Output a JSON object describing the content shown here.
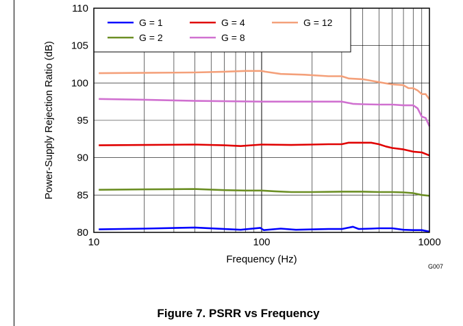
{
  "caption": "Figure 7. PSRR vs Frequency",
  "figure_code": "G007",
  "chart_data": {
    "type": "line",
    "title": "",
    "xlabel": "Frequency (Hz)",
    "ylabel": "Power-Supply Rejection Ratio (dB)",
    "xscale": "log",
    "xlim": [
      10,
      1000
    ],
    "ylim": [
      80,
      110
    ],
    "xticks": [
      10,
      100,
      1000
    ],
    "xtick_labels": [
      "10",
      "100",
      "1000"
    ],
    "yticks": [
      80,
      85,
      90,
      95,
      100,
      105,
      110
    ],
    "ytick_labels": [
      "80",
      "85",
      "90",
      "95",
      "100",
      "105",
      "110"
    ],
    "grid": true,
    "legend_position": "top",
    "series": [
      {
        "name": "G = 1",
        "color": "#0000ff",
        "x": [
          10.7,
          20,
          40,
          60,
          75,
          98,
          103,
          130,
          160,
          250,
          300,
          350,
          380,
          450,
          500,
          600,
          700,
          800,
          900,
          1000
        ],
        "y": [
          80.4,
          80.5,
          80.65,
          80.45,
          80.35,
          80.6,
          80.3,
          80.5,
          80.35,
          80.45,
          80.45,
          80.75,
          80.45,
          80.5,
          80.55,
          80.55,
          80.35,
          80.3,
          80.3,
          80.1
        ]
      },
      {
        "name": "G = 2",
        "color": "#6b8e23",
        "x": [
          10.7,
          20,
          40,
          60,
          80,
          100,
          120,
          150,
          200,
          300,
          400,
          500,
          600,
          700,
          800,
          900,
          1000
        ],
        "y": [
          85.7,
          85.75,
          85.8,
          85.65,
          85.6,
          85.6,
          85.5,
          85.4,
          85.4,
          85.45,
          85.45,
          85.4,
          85.4,
          85.35,
          85.25,
          85.0,
          84.9
        ]
      },
      {
        "name": "G = 4",
        "color": "#e00000",
        "x": [
          10.7,
          20,
          40,
          60,
          75,
          100,
          150,
          200,
          250,
          300,
          330,
          400,
          450,
          500,
          550,
          600,
          700,
          800,
          900,
          1000
        ],
        "y": [
          91.65,
          91.7,
          91.75,
          91.65,
          91.55,
          91.75,
          91.7,
          91.75,
          91.8,
          91.8,
          92.0,
          92.0,
          92.0,
          91.8,
          91.5,
          91.3,
          91.1,
          90.8,
          90.7,
          90.3
        ]
      },
      {
        "name": "G = 8",
        "color": "#d070d0",
        "x": [
          10.7,
          20,
          40,
          60,
          100,
          150,
          200,
          300,
          350,
          400,
          500,
          600,
          700,
          800,
          850,
          900,
          950,
          1000
        ],
        "y": [
          97.85,
          97.75,
          97.6,
          97.55,
          97.5,
          97.5,
          97.5,
          97.5,
          97.2,
          97.15,
          97.1,
          97.1,
          97.0,
          97.0,
          96.6,
          95.5,
          95.3,
          94.2
        ]
      },
      {
        "name": "G = 12",
        "color": "#f4a07a",
        "x": [
          10.7,
          20,
          40,
          60,
          80,
          100,
          105,
          130,
          180,
          250,
          300,
          330,
          400,
          450,
          500,
          600,
          700,
          750,
          800,
          850,
          900,
          950,
          1000
        ],
        "y": [
          101.3,
          101.35,
          101.4,
          101.5,
          101.6,
          101.6,
          101.5,
          101.2,
          101.1,
          100.9,
          100.9,
          100.6,
          100.5,
          100.3,
          100.1,
          99.8,
          99.7,
          99.3,
          99.3,
          99.0,
          98.5,
          98.5,
          97.8
        ]
      }
    ]
  }
}
